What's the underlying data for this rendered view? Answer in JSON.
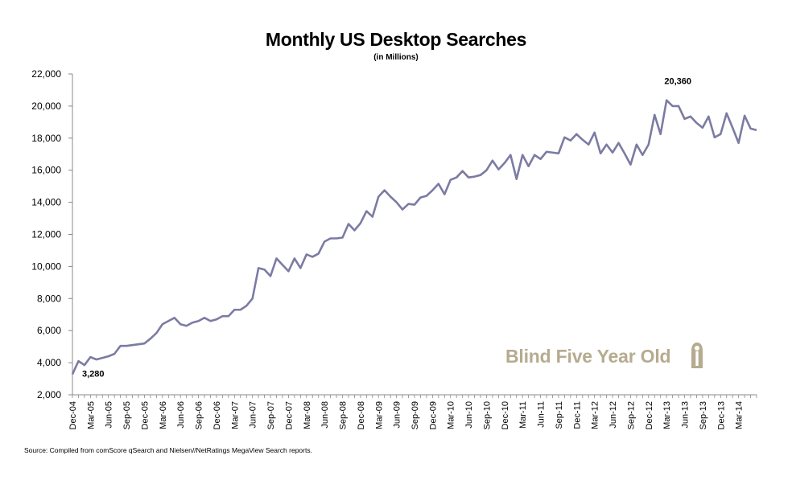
{
  "chart_data": {
    "type": "line",
    "title": "Monthly US Desktop Searches",
    "subtitle": "(in Millions)",
    "source": "Source: Compiled from comScore qSearch and Nielsen//NetRatings MegaView Search reports.",
    "watermark": "Blind Five Year Old",
    "ylim": [
      2000,
      22000
    ],
    "y_ticks": [
      2000,
      4000,
      6000,
      8000,
      10000,
      12000,
      14000,
      16000,
      18000,
      20000,
      22000
    ],
    "y_tick_labels": [
      "2,000",
      "4,000",
      "6,000",
      "8,000",
      "10,000",
      "12,000",
      "14,000",
      "16,000",
      "18,000",
      "20,000",
      "22,000"
    ],
    "x_tick_labels": [
      "Dec-04",
      "Mar-05",
      "Jun-05",
      "Sep-05",
      "Dec-05",
      "Mar-06",
      "Jun-06",
      "Sep-06",
      "Dec-06",
      "Mar-07",
      "Jun-07",
      "Sep-07",
      "Dec-07",
      "Mar-08",
      "Jun-08",
      "Sep-08",
      "Dec-08",
      "Mar-09",
      "Jun-09",
      "Sep-09",
      "Dec-09",
      "Mar-10",
      "Jun-10",
      "Sep-10",
      "Dec-10",
      "Mar-11",
      "Jun-11",
      "Sep-11",
      "Dec-11",
      "Mar-12",
      "Jun-12",
      "Sep-12",
      "Dec-12",
      "Mar-13",
      "Jun-13",
      "Sep-13",
      "Dec-13",
      "Mar-14"
    ],
    "x_start": "Dec-04",
    "x_end": "May-14",
    "grid": false,
    "legend": "none",
    "series": [
      {
        "color": "#7b7ba3",
        "values": [
          3280,
          4100,
          3850,
          4350,
          4200,
          4300,
          4400,
          4550,
          5050,
          5050,
          5100,
          5150,
          5200,
          5500,
          5850,
          6400,
          6600,
          6800,
          6400,
          6300,
          6500,
          6600,
          6800,
          6600,
          6700,
          6900,
          6900,
          7300,
          7300,
          7550,
          8000,
          9900,
          9800,
          9400,
          10500,
          10100,
          9700,
          10500,
          9900,
          10750,
          10600,
          10800,
          11550,
          11750,
          11750,
          11800,
          12650,
          12250,
          12700,
          13450,
          13100,
          14350,
          14750,
          14350,
          14000,
          13550,
          13900,
          13850,
          14300,
          14400,
          14750,
          15150,
          14500,
          15400,
          15550,
          15950,
          15550,
          15600,
          15700,
          16000,
          16600,
          16050,
          16450,
          16950,
          15450,
          16950,
          16250,
          16950,
          16700,
          17150,
          17100,
          17050,
          18050,
          17850,
          18250,
          17900,
          17600,
          18350,
          17050,
          17600,
          17100,
          17700,
          17050,
          16350,
          17600,
          16950,
          17600,
          19450,
          18250,
          20360,
          20000,
          20000,
          19200,
          19350,
          18950,
          18650,
          19350,
          18050,
          18250,
          19550,
          18650,
          17700,
          19400,
          18600,
          18500
        ]
      }
    ],
    "annotations": [
      {
        "text": "3,280",
        "index": 0,
        "value": 3280
      },
      {
        "text": "20,360",
        "index": 99,
        "value": 20360
      }
    ]
  }
}
